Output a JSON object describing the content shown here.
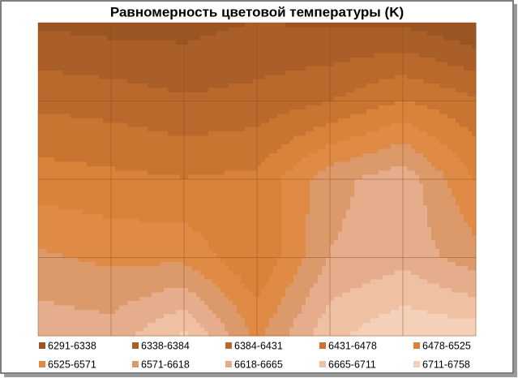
{
  "chart_data": {
    "type": "contour",
    "title": "Равномерность цветовой температуры (K)",
    "z": [
      [
        6330,
        6320,
        6320,
        6340,
        6330,
        6330,
        6291
      ],
      [
        6420,
        6410,
        6390,
        6400,
        6430,
        6480,
        6440
      ],
      [
        6500,
        6490,
        6480,
        6490,
        6600,
        6650,
        6520
      ],
      [
        6580,
        6560,
        6560,
        6480,
        6620,
        6650,
        6590
      ],
      [
        6650,
        6640,
        6720,
        6560,
        6700,
        6750,
        6740
      ]
    ],
    "levels": [
      6291,
      6338,
      6384,
      6431,
      6478,
      6525,
      6571,
      6618,
      6665,
      6711,
      6758
    ],
    "legend": [
      {
        "label": "6291-6338",
        "color": "#9a5522"
      },
      {
        "label": "6338-6384",
        "color": "#a95f27"
      },
      {
        "label": "6384-6431",
        "color": "#b9692c"
      },
      {
        "label": "6431-6478",
        "color": "#c97532"
      },
      {
        "label": "6478-6525",
        "color": "#d8823a"
      },
      {
        "label": "6525-6571",
        "color": "#e08b45"
      },
      {
        "label": "6571-6618",
        "color": "#dc9a6a"
      },
      {
        "label": "6618-6665",
        "color": "#e6ad8c"
      },
      {
        "label": "6665-6711",
        "color": "#efc0a2"
      },
      {
        "label": "6711-6758",
        "color": "#f5d0b8"
      }
    ],
    "grid": true
  }
}
